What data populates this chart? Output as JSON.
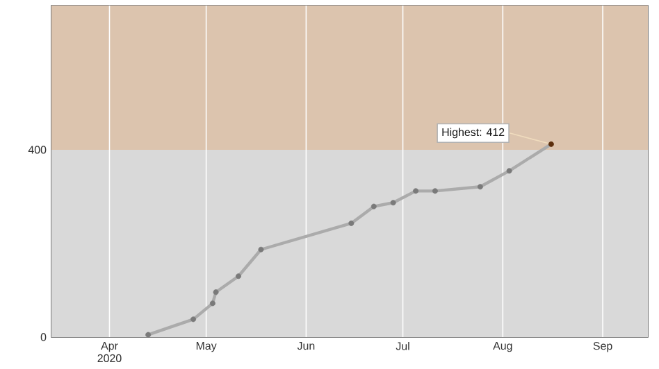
{
  "chart_data": {
    "type": "line",
    "x": [
      "2020-04-13",
      "2020-04-27",
      "2020-05-03",
      "2020-05-04",
      "2020-05-11",
      "2020-05-18",
      "2020-06-15",
      "2020-06-22",
      "2020-06-28",
      "2020-07-05",
      "2020-07-11",
      "2020-07-25",
      "2020-08-03",
      "2020-08-16"
    ],
    "series": [
      {
        "color": "#ababab",
        "colors": [
          "#7a7a7a",
          "#7a7a7a",
          "#7a7a7a",
          "#7a7a7a",
          "#7a7a7a",
          "#7a7a7a",
          "#7a7a7a",
          "#7a7a7a",
          "#7a7a7a",
          "#7a7a7a",
          "#7a7a7a",
          "#7a7a7a",
          "#7a7a7a",
          "#5c2e0c"
        ],
        "values": [
          5,
          38,
          72,
          96,
          130,
          187,
          243,
          279,
          287,
          312,
          312,
          321,
          355,
          412
        ]
      }
    ],
    "xlim": [
      "2020-03-14",
      "2020-09-15"
    ],
    "xticks": [
      {
        "value": "2020-04-01",
        "label": "Apr 2020"
      },
      {
        "value": "2020-05-01",
        "label": "May"
      },
      {
        "value": "2020-06-01",
        "label": "Jun"
      },
      {
        "value": "2020-07-01",
        "label": "Jul"
      },
      {
        "value": "2020-08-01",
        "label": "Aug"
      },
      {
        "value": "2020-09-01",
        "label": "Sep"
      }
    ],
    "ylim": [
      0,
      708
    ],
    "yticks": [
      0,
      400
    ],
    "bands": [
      {
        "axis": "y",
        "from": 0,
        "to": 400,
        "color": "#d9d9d9"
      },
      {
        "axis": "y",
        "from": 400,
        "to": 708,
        "color": "#dcc4ae"
      }
    ],
    "annotations": [
      {
        "text": "Highest: 412",
        "x": "2020-08-16",
        "y": 412
      }
    ],
    "grid": "x",
    "marker": "circle",
    "line_style": "solid"
  }
}
